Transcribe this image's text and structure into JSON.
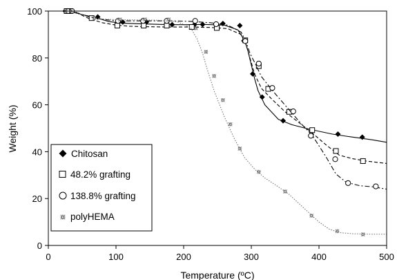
{
  "chart_data": {
    "type": "line",
    "title": "",
    "xlabel": "Temperature (ºC)",
    "ylabel": "Weight (%)",
    "xlim": [
      0,
      500
    ],
    "ylim": [
      0,
      100
    ],
    "xticks": [
      "0",
      "100",
      "200",
      "300",
      "400",
      "500"
    ],
    "yticks": [
      "0",
      "20",
      "40",
      "60",
      "80",
      "100"
    ],
    "grid": false,
    "legend_position": "bottom-left",
    "series": [
      {
        "name": "Chitosan",
        "marker": "filled-diamond",
        "line_style": "solid",
        "x": [
          25,
          30,
          35,
          50,
          70,
          90,
          110,
          140,
          180,
          210,
          230,
          260,
          280,
          290,
          295,
          300,
          305,
          310,
          320,
          340,
          360,
          380,
          400,
          420,
          440,
          460,
          480,
          500
        ],
        "y": [
          100,
          100,
          99.6,
          98.5,
          97.2,
          95.5,
          94.8,
          94.5,
          94.2,
          94.2,
          94.3,
          94.0,
          92.0,
          87.5,
          83.0,
          77.0,
          71.0,
          66.0,
          60.0,
          53.8,
          51.5,
          50.0,
          48.7,
          47.5,
          46.6,
          45.8,
          45.0,
          44.0
        ],
        "marker_x": [
          25,
          30,
          65,
          73,
          110,
          145,
          183,
          216,
          228,
          258,
          283,
          289,
          302,
          311,
          316,
          347,
          428,
          464
        ],
        "marker_y": [
          100,
          100,
          97.0,
          97.5,
          95.3,
          95.3,
          94.2,
          94.2,
          94.3,
          94.7,
          93.8,
          87.3,
          73.2,
          77.2,
          63.3,
          53.2,
          47.5,
          46.2
        ]
      },
      {
        "name": "48.2% grafting",
        "marker": "open-square",
        "line_style": "dashed",
        "x": [
          25,
          30,
          40,
          60,
          80,
          100,
          120,
          150,
          180,
          210,
          240,
          265,
          285,
          292,
          298,
          305,
          315,
          330,
          350,
          370,
          390,
          410,
          430,
          450,
          470,
          490,
          500
        ],
        "y": [
          100,
          100,
          99.5,
          96.8,
          95.0,
          94.0,
          93.5,
          93.3,
          93.2,
          93.2,
          93.0,
          92.5,
          90.0,
          86.0,
          80.0,
          73.0,
          67.0,
          62.5,
          57.0,
          52.5,
          48.0,
          43.0,
          38.5,
          37.0,
          36.0,
          35.3,
          35.0
        ],
        "marker_x": [
          27,
          32,
          64,
          102,
          141,
          175,
          212,
          249,
          291,
          311,
          325,
          356,
          390,
          425,
          465
        ],
        "marker_y": [
          100,
          100,
          97.0,
          93.8,
          93.8,
          93.8,
          93.2,
          92.8,
          87.5,
          76.5,
          66.8,
          57.0,
          49.2,
          40.3,
          36.0
        ]
      },
      {
        "name": "138.8% grafting",
        "marker": "open-circle",
        "line_style": "dash-dot",
        "x": [
          25,
          30,
          40,
          60,
          80,
          100,
          120,
          150,
          180,
          210,
          240,
          265,
          285,
          292,
          298,
          305,
          315,
          330,
          345,
          360,
          375,
          390,
          410,
          425,
          440,
          460,
          480,
          500
        ],
        "y": [
          100,
          100,
          99.6,
          97.5,
          96.5,
          95.8,
          95.8,
          95.8,
          95.8,
          95.6,
          95.0,
          94.0,
          91.0,
          87.0,
          82.0,
          78.0,
          72.0,
          66.5,
          61.5,
          56.5,
          51.5,
          47.0,
          38.0,
          30.5,
          27.0,
          25.5,
          25.0,
          24.0
        ],
        "marker_x": [
          29,
          35,
          103,
          140,
          175,
          217,
          248,
          291,
          311,
          331,
          362,
          388,
          424,
          443,
          484
        ],
        "marker_y": [
          100,
          100,
          95.8,
          95.8,
          95.8,
          95.8,
          94.4,
          87.2,
          77.6,
          67.2,
          57.2,
          46.8,
          36.8,
          26.6,
          25.2
        ]
      },
      {
        "name": "polyHEMA",
        "marker": "asterisk",
        "line_style": "dotted",
        "x": [
          25,
          30,
          40,
          60,
          80,
          100,
          130,
          160,
          190,
          210,
          220,
          228,
          235,
          245,
          260,
          275,
          290,
          305,
          320,
          340,
          355,
          370,
          385,
          400,
          415,
          430,
          450,
          475,
          500
        ],
        "y": [
          100,
          100,
          99.5,
          97.5,
          96.6,
          96.3,
          96.2,
          96.1,
          95.5,
          93.0,
          88.0,
          82.0,
          75.0,
          66.0,
          55.0,
          45.5,
          37.5,
          32.5,
          28.8,
          25.0,
          22.0,
          18.0,
          14.0,
          10.0,
          7.0,
          5.5,
          5.0,
          4.8,
          4.8
        ],
        "marker_x": [
          26,
          33,
          68,
          106,
          143,
          178,
          218,
          233,
          245,
          258,
          269,
          283,
          311,
          350,
          389,
          427,
          465
        ],
        "marker_y": [
          100,
          100,
          97.0,
          96.4,
          96.4,
          96.4,
          92.7,
          82.6,
          72.3,
          62.0,
          51.7,
          41.3,
          31.4,
          23.0,
          12.7,
          6.1,
          4.7
        ]
      }
    ]
  }
}
